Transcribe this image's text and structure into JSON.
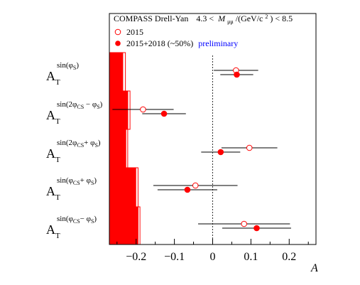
{
  "chart_data": {
    "type": "scatter",
    "legend": {
      "title_left": "COMPASS Drell-Yan",
      "mass_range_prefix": "4.3 <",
      "mass_range_var": "M",
      "mass_range_sub": "μμ",
      "mass_range_unit": "/(GeV/c",
      "mass_range_sup": "2",
      "mass_range_suffix": ") < 8.5",
      "entry_open": "2015",
      "entry_filled": "2015+2018 (~50%)",
      "preliminary": "preliminary",
      "placement": "top"
    },
    "xlabel": "A",
    "xlim": [
      -0.27,
      0.27
    ],
    "xticks": [
      -0.2,
      -0.1,
      0,
      0.1,
      0.2
    ],
    "xtick_labels": [
      "−0.2",
      "−0.1",
      "0",
      "0.1",
      "0.2"
    ],
    "zero_line": "dashed",
    "colors": {
      "filled": "#ff0000",
      "open": "#ff0000",
      "bar": "#ff0000",
      "frame": "#000000",
      "preliminary": "#0000ff"
    },
    "rows": [
      {
        "label_main": "A",
        "label_sub": "T",
        "label_sup": [
          "sin(φ",
          "S",
          ")"
        ],
        "open": {
          "value": 0.061,
          "err_low": 0.058,
          "err_high": 0.058
        },
        "filled": {
          "value": 0.063,
          "err_low": 0.043,
          "err_high": 0.043
        },
        "syst_open": -0.228,
        "syst_filled": -0.234
      },
      {
        "label_main": "A",
        "label_sub": "T",
        "label_sup": [
          "sin(2φ",
          "CS",
          " − φ",
          "S",
          ")"
        ],
        "open": {
          "value": -0.182,
          "err_low": 0.08,
          "err_high": 0.08
        },
        "filled": {
          "value": -0.127,
          "err_low": 0.057,
          "err_high": 0.057
        },
        "syst_open": -0.216,
        "syst_filled": -0.221
      },
      {
        "label_main": "A",
        "label_sub": "T",
        "label_sup": [
          "sin(2φ",
          "CS",
          "+ φ",
          "S",
          ")"
        ],
        "open": {
          "value": 0.096,
          "err_low": 0.073,
          "err_high": 0.073
        },
        "filled": {
          "value": 0.021,
          "err_low": 0.051,
          "err_high": 0.051
        },
        "syst_open": -0.222,
        "syst_filled": -0.226
      },
      {
        "label_main": "A",
        "label_sub": "T",
        "label_sup": [
          "sin(φ",
          "CS",
          "+ φ",
          "S",
          ")"
        ],
        "open": {
          "value": -0.045,
          "err_low": 0.11,
          "err_high": 0.11
        },
        "filled": {
          "value": -0.066,
          "err_low": 0.078,
          "err_high": 0.078
        },
        "syst_open": -0.195,
        "syst_filled": -0.2
      },
      {
        "label_main": "A",
        "label_sub": "T",
        "label_sup": [
          "sin(φ",
          "CS",
          "− φ",
          "S",
          ")"
        ],
        "open": {
          "value": 0.082,
          "err_low": 0.12,
          "err_high": 0.12
        },
        "filled": {
          "value": 0.115,
          "err_low": 0.09,
          "err_high": 0.09
        },
        "syst_open": -0.19,
        "syst_filled": -0.194
      }
    ]
  }
}
